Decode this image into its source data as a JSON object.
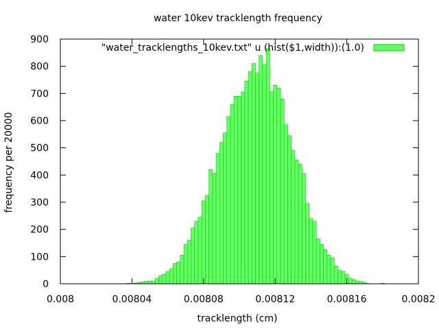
{
  "chart_data": {
    "type": "bar",
    "title": "water 10kev tracklength frequency",
    "xlabel": "tracklength (cm)",
    "ylabel": "frequency per 20000",
    "xlim": [
      0.008,
      0.0082
    ],
    "ylim": [
      0,
      900
    ],
    "xticks": [
      "0.008",
      "0.00804",
      "0.00808",
      "0.00812",
      "0.00816",
      "0.0082"
    ],
    "yticks": [
      "0",
      "100",
      "200",
      "300",
      "400",
      "500",
      "600",
      "700",
      "800",
      "900"
    ],
    "grid": false,
    "legend_position": "top-right",
    "series": [
      {
        "name": "\"water_tracklengths_10kev.txt\" u (hist($1,width)):(1.0)",
        "color": "#66ff66",
        "edge_color": "#00cc00",
        "bin_width": 2e-06,
        "x": [
          0.008038,
          0.00804,
          0.008042,
          0.008044,
          0.008046,
          0.008048,
          0.00805,
          0.008052,
          0.008054,
          0.008056,
          0.008058,
          0.00806,
          0.008062,
          0.008064,
          0.008066,
          0.008068,
          0.00807,
          0.008072,
          0.008074,
          0.008076,
          0.008078,
          0.00808,
          0.008082,
          0.008084,
          0.008086,
          0.008088,
          0.00809,
          0.008092,
          0.008094,
          0.008096,
          0.008098,
          0.0081,
          0.008102,
          0.008104,
          0.008106,
          0.008108,
          0.00811,
          0.008112,
          0.008114,
          0.008116,
          0.008118,
          0.00812,
          0.008122,
          0.008124,
          0.008126,
          0.008128,
          0.00813,
          0.008132,
          0.008134,
          0.008136,
          0.008138,
          0.00814,
          0.008142,
          0.008144,
          0.008146,
          0.008148,
          0.00815,
          0.008152,
          0.008154,
          0.008156,
          0.008158,
          0.00816,
          0.008162,
          0.008164,
          0.008166,
          0.008168,
          0.00817,
          0.008172,
          0.00818
        ],
        "values": [
          2,
          1,
          3,
          5,
          7,
          9,
          10,
          10,
          20,
          30,
          35,
          45,
          55,
          75,
          80,
          105,
          145,
          160,
          205,
          230,
          245,
          305,
          325,
          420,
          405,
          480,
          520,
          555,
          615,
          660,
          690,
          690,
          705,
          745,
          780,
          810,
          775,
          840,
          805,
          865,
          705,
          730,
          720,
          680,
          585,
          545,
          490,
          455,
          440,
          405,
          295,
          240,
          230,
          165,
          145,
          125,
          105,
          95,
          65,
          50,
          45,
          35,
          20,
          15,
          10,
          8,
          5,
          1,
          2
        ]
      }
    ]
  }
}
